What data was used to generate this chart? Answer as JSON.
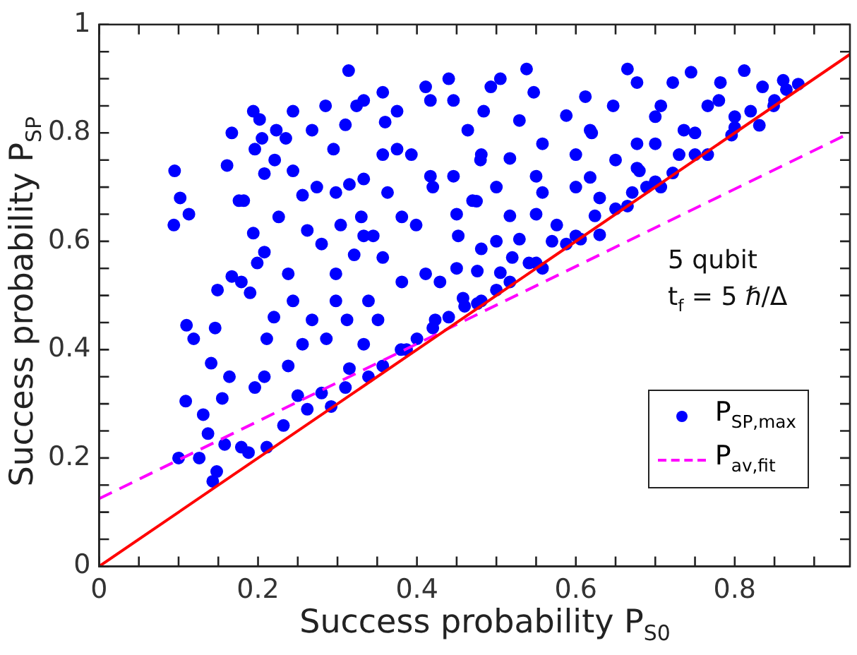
{
  "chart_data": {
    "type": "scatter",
    "xlabel": "Success probability P$_{S0}$",
    "ylabel": "Success probability P$_{SP}$",
    "annotations": [
      "5 qubit",
      "t$_{f}$ = 5 ℏ/Δ"
    ],
    "xlim": [
      0,
      0.945
    ],
    "ylim": [
      0,
      1
    ],
    "xticks": [
      0,
      {
        "value": 0.05,
        "label": null
      },
      0.2,
      {
        "value": 0.1,
        "label": null
      },
      {
        "value": 0.15,
        "label": null
      },
      {
        "value": 0.25,
        "label": null
      },
      {
        "value": 0.3,
        "label": null
      },
      {
        "value": 0.35,
        "label": null
      },
      0.4,
      {
        "value": 0.45,
        "label": null
      },
      {
        "value": 0.5,
        "label": null
      },
      {
        "value": 0.55,
        "label": null
      },
      0.6,
      {
        "value": 0.65,
        "label": null
      },
      {
        "value": 0.7,
        "label": null
      },
      {
        "value": 0.75,
        "label": null
      },
      0.8,
      {
        "value": 0.85,
        "label": null
      },
      {
        "value": 0.9,
        "label": null
      }
    ],
    "yticks": [
      0,
      {
        "value": 0.05,
        "label": null
      },
      {
        "value": 0.1,
        "label": null
      },
      {
        "value": 0.15,
        "label": null
      },
      0.2,
      {
        "value": 0.25,
        "label": null
      },
      {
        "value": 0.3,
        "label": null
      },
      {
        "value": 0.35,
        "label": null
      },
      0.4,
      {
        "value": 0.45,
        "label": null
      },
      {
        "value": 0.5,
        "label": null
      },
      {
        "value": 0.55,
        "label": null
      },
      0.6,
      {
        "value": 0.65,
        "label": null
      },
      {
        "value": 0.7,
        "label": null
      },
      {
        "value": 0.75,
        "label": null
      },
      0.8,
      {
        "value": 0.85,
        "label": null
      },
      {
        "value": 0.9,
        "label": null
      },
      {
        "value": 0.95,
        "label": null
      },
      1
    ],
    "grid": false,
    "legend": "bottom right",
    "series": [
      {
        "type": "scatter",
        "name": "P$_{SP,max}$",
        "color": "#0000ff",
        "marker": "circle",
        "x": [
          0.095,
          0.102,
          0.113,
          0.094,
          0.1,
          0.11,
          0.119,
          0.109,
          0.131,
          0.126,
          0.137,
          0.143,
          0.148,
          0.141,
          0.146,
          0.149,
          0.161,
          0.167,
          0.155,
          0.164,
          0.158,
          0.176,
          0.182,
          0.167,
          0.179,
          0.194,
          0.202,
          0.196,
          0.194,
          0.19,
          0.188,
          0.179,
          0.196,
          0.199,
          0.205,
          0.208,
          0.208,
          0.211,
          0.208,
          0.211,
          0.223,
          0.221,
          0.22,
          0.226,
          0.235,
          0.238,
          0.244,
          0.244,
          0.244,
          0.238,
          0.232,
          0.256,
          0.262,
          0.268,
          0.274,
          0.28,
          0.268,
          0.256,
          0.25,
          0.262,
          0.285,
          0.295,
          0.298,
          0.298,
          0.298,
          0.286,
          0.28,
          0.292,
          0.314,
          0.31,
          0.315,
          0.304,
          0.321,
          0.312,
          0.315,
          0.31,
          0.324,
          0.333,
          0.333,
          0.33,
          0.333,
          0.339,
          0.333,
          0.339,
          0.345,
          0.357,
          0.36,
          0.357,
          0.363,
          0.357,
          0.351,
          0.357,
          0.375,
          0.375,
          0.381,
          0.381,
          0.387,
          0.393,
          0.399,
          0.411,
          0.417,
          0.417,
          0.411,
          0.423,
          0.429,
          0.44,
          0.446,
          0.446,
          0.452,
          0.458,
          0.464,
          0.47,
          0.476,
          0.476,
          0.538,
          0.665,
          0.745,
          0.812,
          0.861,
          0.505,
          0.493,
          0.547,
          0.612,
          0.677,
          0.722,
          0.782,
          0.835,
          0.865,
          0.484,
          0.529,
          0.588,
          0.647,
          0.707,
          0.766,
          0.82,
          0.849,
          0.481,
          0.517,
          0.558,
          0.618,
          0.677,
          0.736,
          0.796,
          0.831,
          0.475,
          0.517,
          0.558,
          0.618,
          0.677,
          0.722,
          0.766,
          0.481,
          0.529,
          0.576,
          0.624,
          0.665,
          0.707,
          0.505,
          0.541,
          0.588,
          0.63,
          0.671,
          0.481,
          0.517,
          0.558,
          0.606,
          0.689,
          0.5,
          0.55,
          0.6,
          0.65,
          0.7,
          0.75,
          0.8,
          0.85,
          0.88,
          0.44,
          0.46,
          0.42,
          0.4,
          0.38,
          0.45,
          0.5,
          0.5,
          0.55,
          0.6,
          0.6,
          0.65,
          0.7,
          0.75,
          0.8,
          0.45,
          0.48,
          0.42,
          0.55,
          0.62,
          0.7,
          0.78,
          0.57,
          0.63,
          0.68,
          0.73,
          0.52
        ],
        "values": [
          0.73,
          0.68,
          0.65,
          0.63,
          0.2,
          0.445,
          0.42,
          0.305,
          0.28,
          0.2,
          0.245,
          0.157,
          0.175,
          0.375,
          0.44,
          0.51,
          0.74,
          0.8,
          0.31,
          0.35,
          0.225,
          0.675,
          0.675,
          0.535,
          0.525,
          0.84,
          0.825,
          0.77,
          0.615,
          0.505,
          0.21,
          0.22,
          0.33,
          0.56,
          0.79,
          0.725,
          0.58,
          0.42,
          0.35,
          0.22,
          0.805,
          0.75,
          0.46,
          0.645,
          0.79,
          0.54,
          0.84,
          0.73,
          0.49,
          0.37,
          0.26,
          0.685,
          0.62,
          0.805,
          0.7,
          0.595,
          0.455,
          0.41,
          0.315,
          0.29,
          0.85,
          0.77,
          0.69,
          0.54,
          0.49,
          0.42,
          0.32,
          0.295,
          0.915,
          0.815,
          0.705,
          0.63,
          0.575,
          0.455,
          0.365,
          0.33,
          0.85,
          0.86,
          0.715,
          0.645,
          0.61,
          0.49,
          0.41,
          0.35,
          0.61,
          0.875,
          0.82,
          0.76,
          0.69,
          0.57,
          0.455,
          0.37,
          0.84,
          0.77,
          0.645,
          0.525,
          0.4,
          0.76,
          0.63,
          0.885,
          0.86,
          0.72,
          0.54,
          0.455,
          0.525,
          0.9,
          0.86,
          0.72,
          0.61,
          0.495,
          0.805,
          0.675,
          0.545,
          0.485,
          0.918,
          0.918,
          0.912,
          0.915,
          0.897,
          0.9,
          0.885,
          0.875,
          0.867,
          0.893,
          0.893,
          0.893,
          0.885,
          0.88,
          0.84,
          0.823,
          0.832,
          0.85,
          0.85,
          0.85,
          0.84,
          0.85,
          0.76,
          0.753,
          0.78,
          0.805,
          0.78,
          0.805,
          0.796,
          0.814,
          0.674,
          0.647,
          0.69,
          0.718,
          0.735,
          0.726,
          0.76,
          0.586,
          0.604,
          0.63,
          0.647,
          0.665,
          0.7,
          0.542,
          0.56,
          0.595,
          0.612,
          0.69,
          0.49,
          0.525,
          0.55,
          0.604,
          0.7,
          0.51,
          0.56,
          0.61,
          0.66,
          0.71,
          0.76,
          0.81,
          0.86,
          0.89,
          0.46,
          0.48,
          0.44,
          0.42,
          0.4,
          0.55,
          0.6,
          0.7,
          0.65,
          0.7,
          0.76,
          0.75,
          0.78,
          0.8,
          0.83,
          0.65,
          0.75,
          0.7,
          0.72,
          0.8,
          0.83,
          0.86,
          0.6,
          0.68,
          0.73,
          0.76,
          0.57
        ]
      },
      {
        "type": "line",
        "color": "#ff0000",
        "line_style": "solid",
        "x": [
          0,
          0.945
        ],
        "values": [
          0,
          0.945
        ]
      },
      {
        "type": "line",
        "name": "P$_{av,fit}$",
        "color": "#ff00ff",
        "line_style": "dashed",
        "x": [
          0,
          0.945
        ],
        "values": [
          0.125,
          0.8
        ]
      }
    ]
  }
}
